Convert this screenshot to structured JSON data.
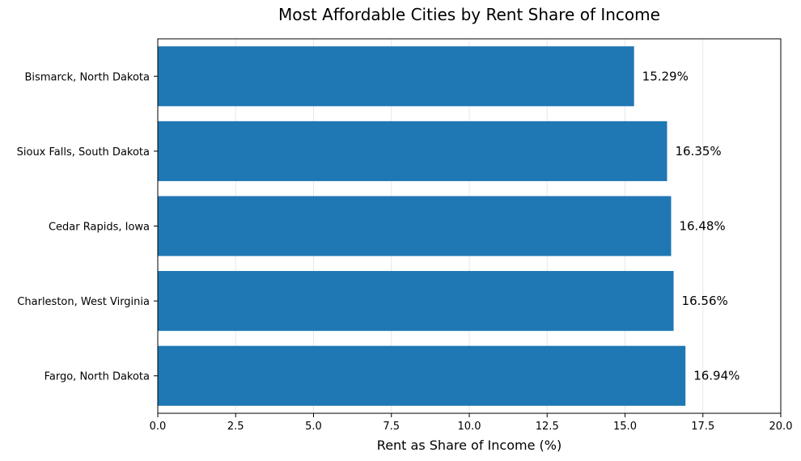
{
  "chart_data": {
    "type": "bar",
    "orientation": "horizontal",
    "title": "Most Affordable Cities by Rent Share of Income",
    "xlabel": "Rent as Share of Income (%)",
    "ylabel": "",
    "categories": [
      "Bismarck, North Dakota",
      "Sioux Falls, South Dakota",
      "Cedar Rapids, Iowa",
      "Charleston, West Virginia",
      "Fargo, North Dakota"
    ],
    "values": [
      15.29,
      16.35,
      16.48,
      16.56,
      16.94
    ],
    "data_labels": [
      "15.29%",
      "16.35%",
      "16.48%",
      "16.56%",
      "16.94%"
    ],
    "xlim": [
      0,
      20
    ],
    "xticks": [
      0,
      2.5,
      5,
      7.5,
      10,
      12.5,
      15,
      17.5,
      20
    ],
    "xtick_labels": [
      "0.0",
      "2.5",
      "5.0",
      "7.5",
      "10.0",
      "12.5",
      "15.0",
      "17.5",
      "20.0"
    ],
    "grid": "vertical",
    "bar_color": "#1f77b4"
  }
}
